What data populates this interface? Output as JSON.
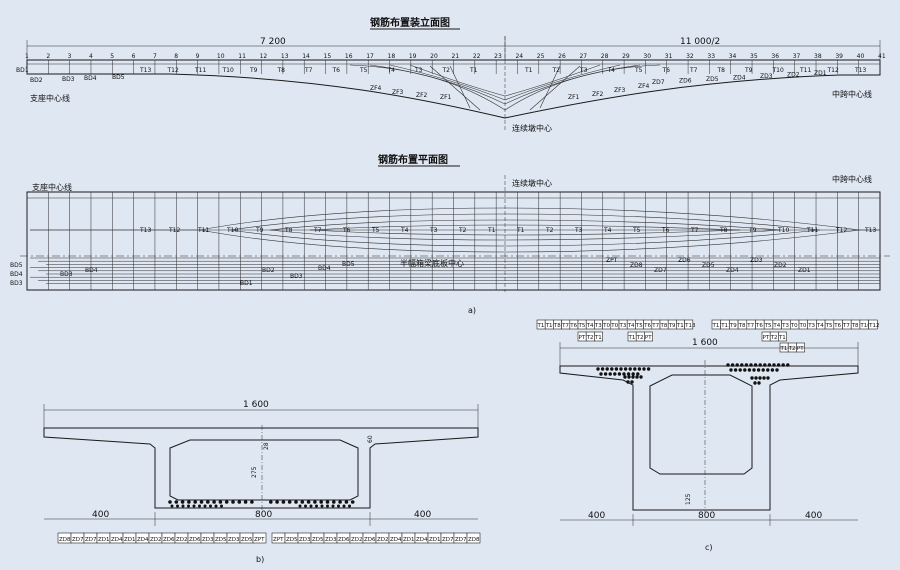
{
  "figure": {
    "elevation_title": "钢筋布置装立面图",
    "plan_title": "钢筋布置平面图",
    "support_center": "支座中心线",
    "pier_center": "连续墩中心",
    "midspan_center": "中跨中心线",
    "box_bottom_center": "半幅箱梁底板中心",
    "dim_left_span": "7 200",
    "dim_right_span": "11 000/2",
    "station_numbers": [
      "1",
      "2",
      "3",
      "4",
      "5",
      "6",
      "7",
      "8",
      "9",
      "10",
      "11",
      "12",
      "13",
      "14",
      "15",
      "16",
      "17",
      "18",
      "19",
      "20",
      "21",
      "22",
      "23",
      "24",
      "25",
      "26",
      "27",
      "28",
      "29",
      "30",
      "31",
      "32",
      "33",
      "34",
      "35",
      "36",
      "37",
      "38",
      "39",
      "40",
      "41"
    ],
    "elev_left_labels": [
      "BD1",
      "BD2",
      "BD3",
      "BD4",
      "BD5"
    ],
    "elev_top_tendons": [
      "T13",
      "T12",
      "T11",
      "T10",
      "T9",
      "T8",
      "T7",
      "T6",
      "T5",
      "T4",
      "T3",
      "T2",
      "T1"
    ],
    "elev_zf_labels": [
      "ZF4",
      "ZF3",
      "ZF2",
      "ZF1",
      "ZF1",
      "ZF2",
      "ZF3",
      "ZF4"
    ],
    "elev_zd_labels": [
      "ZD7",
      "ZD6",
      "ZD5",
      "ZD4",
      "ZD3",
      "ZD2",
      "ZD1"
    ],
    "plan_left_labels": [
      "BD5",
      "BD4",
      "BD3",
      "BD2",
      "BD1"
    ],
    "plan_tendons": [
      "T13",
      "T12",
      "T11",
      "T10",
      "T9",
      "T8",
      "T7",
      "T6",
      "T5",
      "T4",
      "T3",
      "T2",
      "T1",
      "T1",
      "T2",
      "T3",
      "T4",
      "T5",
      "T6",
      "T7",
      "T8",
      "T9",
      "T10",
      "T11",
      "T12",
      "T13"
    ],
    "plan_zd_labels": [
      "ZPT",
      "ZD8",
      "ZD7",
      "ZD6",
      "ZD5",
      "ZD4",
      "ZD3",
      "ZD2",
      "ZD1"
    ],
    "sub_a": "a)",
    "sub_b": "b)",
    "sub_c": "c)",
    "b_dims": {
      "total": "1 600",
      "left": "400",
      "mid": "800",
      "right": "400",
      "web": "275",
      "top": "28",
      "flange": "60"
    },
    "b_tags_left": [
      "ZD8",
      "ZD7",
      "ZD7",
      "ZD1",
      "ZD4",
      "ZD1",
      "ZD4",
      "ZD2",
      "ZD6",
      "ZD2",
      "ZD6",
      "ZD3",
      "ZD5",
      "ZD3",
      "ZD5",
      "ZPT"
    ],
    "b_tags_right": [
      "ZPT",
      "ZD5",
      "ZD3",
      "ZD5",
      "ZD3",
      "ZD6",
      "ZD2",
      "ZD6",
      "ZD2",
      "ZD4",
      "ZD1",
      "ZD4",
      "ZD1",
      "ZD7",
      "ZD7",
      "ZD8"
    ],
    "c_dims": {
      "total": "1 600",
      "left": "400",
      "mid": "800",
      "right": "400",
      "web": "125"
    },
    "c_tags_top_left": [
      "T12",
      "T10",
      "T8",
      "T7",
      "T6",
      "T5",
      "T4",
      "T3",
      "T0",
      "T0",
      "T3",
      "T4",
      "T5",
      "T6",
      "T7",
      "T8",
      "T9",
      "T11",
      "T13"
    ],
    "c_tags_top_left2": [
      "PT",
      "T2",
      "T1"
    ],
    "c_tags_top_mid": [
      "T1",
      "T2",
      "PT"
    ],
    "c_tags_top_right": [
      "T13",
      "T11",
      "T9",
      "T8",
      "T7",
      "T6",
      "T5",
      "T4",
      "T3",
      "T0",
      "T0",
      "T3",
      "T4",
      "T5",
      "T6",
      "T7",
      "T8",
      "T10",
      "T12"
    ],
    "c_tags_top_right2": [
      "PT",
      "T2",
      "T1"
    ],
    "c_tags_top_right3": [
      "T1",
      "T2",
      "PT"
    ]
  }
}
